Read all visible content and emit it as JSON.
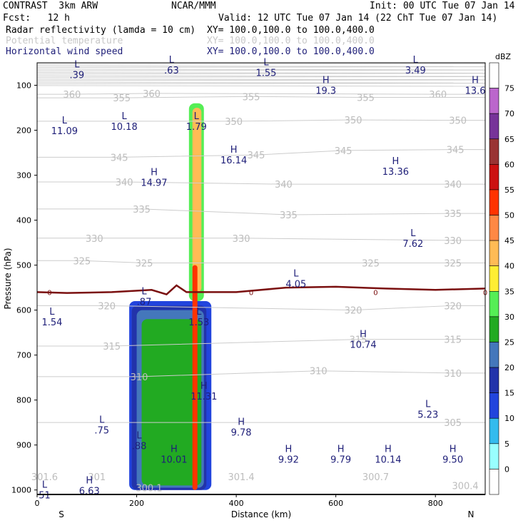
{
  "header": {
    "left_title": "CONTRAST  3km ARW",
    "center_title": "NCAR/MMM",
    "init": "Init: 00 UTC Tue 07 Jan 14",
    "fcst": "Fcst:   12 h",
    "valid": "Valid: 12 UTC Tue 07 Jan 14 (22 ChT Tue 07 Jan 14)",
    "fields": [
      {
        "name": "Radar reflectivity (lamda = 10 cm)",
        "xy": "XY= 100.0,100.0 to 100.0,400.0",
        "color": "#000000"
      },
      {
        "name": "Potential temperature",
        "xy": "XY= 100.0,100.0 to 100.0,400.0",
        "color": "#c8c8c8"
      },
      {
        "name": "Horizontal wind speed",
        "xy": "XY= 100.0,100.0 to 100.0,400.0",
        "color": "#1e1e78"
      }
    ]
  },
  "chart_data": {
    "type": "cross-section",
    "xlabel": "Distance (km)",
    "ylabel": "Pressure (hPa)",
    "xlim": [
      0,
      900
    ],
    "ylim": [
      1010,
      50
    ],
    "x_ticks": [
      0,
      200,
      400,
      600,
      800
    ],
    "y_ticks": [
      100,
      200,
      300,
      400,
      500,
      600,
      700,
      800,
      900,
      1000
    ],
    "x_end_labels": {
      "left": "S",
      "right": "N"
    },
    "colorbar": {
      "unit": "dBZ",
      "levels": [
        0,
        5,
        10,
        15,
        20,
        25,
        30,
        35,
        40,
        45,
        50,
        55,
        60,
        65,
        70,
        75
      ],
      "colors": [
        "#ffffff",
        "#99ffff",
        "#33bbee",
        "#2244dd",
        "#2233aa",
        "#4477bb",
        "#22aa22",
        "#55ee55",
        "#ffee33",
        "#ffbb55",
        "#ff8844",
        "#ff3300",
        "#cc1111",
        "#993333",
        "#773399",
        "#bb66cc",
        "#ffffff"
      ]
    },
    "reflectivity_core": [
      {
        "x": [
          185,
          350
        ],
        "p": [
          1000,
          580
        ],
        "dbz": 10
      },
      {
        "x": [
          190,
          340
        ],
        "p": [
          1000,
          590
        ],
        "dbz": 15
      },
      {
        "x": [
          200,
          335
        ],
        "p": [
          995,
          600
        ],
        "dbz": 20
      },
      {
        "x": [
          210,
          330
        ],
        "p": [
          990,
          620
        ],
        "dbz": 25
      },
      {
        "x": [
          305,
          335
        ],
        "p": [
          580,
          140
        ],
        "dbz": 30
      },
      {
        "x": [
          312,
          330
        ],
        "p": [
          560,
          150
        ],
        "dbz": 40
      },
      {
        "x": [
          312,
          322
        ],
        "p": [
          1000,
          500
        ],
        "dbz": 50
      }
    ],
    "zero_isotherm": {
      "label": "0",
      "points": [
        [
          0,
          560
        ],
        [
          60,
          562
        ],
        [
          150,
          560
        ],
        [
          230,
          555
        ],
        [
          260,
          565
        ],
        [
          280,
          545
        ],
        [
          300,
          560
        ],
        [
          400,
          560
        ],
        [
          500,
          550
        ],
        [
          600,
          548
        ],
        [
          700,
          552
        ],
        [
          800,
          555
        ],
        [
          900,
          552
        ]
      ],
      "color": "#7a0f0f"
    },
    "theta_contours": [
      {
        "value": "360",
        "labels": [
          [
            70,
            120
          ],
          [
            230,
            118
          ],
          [
            805,
            120
          ]
        ]
      },
      {
        "value": "355",
        "labels": [
          [
            170,
            128
          ],
          [
            430,
            125
          ],
          [
            660,
            127
          ]
        ]
      },
      {
        "value": "350",
        "labels": [
          [
            395,
            180
          ],
          [
            635,
            177
          ],
          [
            845,
            178
          ]
        ]
      },
      {
        "value": "345",
        "labels": [
          [
            165,
            260
          ],
          [
            440,
            255
          ],
          [
            615,
            245
          ],
          [
            840,
            243
          ]
        ]
      },
      {
        "value": "340",
        "labels": [
          [
            175,
            315
          ],
          [
            495,
            320
          ],
          [
            835,
            320
          ]
        ]
      },
      {
        "value": "335",
        "labels": [
          [
            210,
            375
          ],
          [
            505,
            388
          ],
          [
            835,
            385
          ]
        ]
      },
      {
        "value": "330",
        "labels": [
          [
            115,
            440
          ],
          [
            410,
            440
          ],
          [
            835,
            445
          ]
        ]
      },
      {
        "value": "325",
        "labels": [
          [
            90,
            490
          ],
          [
            215,
            495
          ],
          [
            670,
            495
          ],
          [
            835,
            495
          ]
        ]
      },
      {
        "value": "320",
        "labels": [
          [
            140,
            590
          ],
          [
            635,
            600
          ],
          [
            835,
            590
          ]
        ]
      },
      {
        "value": "315",
        "labels": [
          [
            150,
            680
          ],
          [
            645,
            665
          ],
          [
            835,
            665
          ]
        ]
      },
      {
        "value": "310",
        "labels": [
          [
            205,
            748
          ],
          [
            565,
            735
          ],
          [
            835,
            740
          ]
        ]
      },
      {
        "value": "305",
        "labels": [
          [
            835,
            850
          ]
        ]
      }
    ],
    "surface_theta_labels": [
      {
        "text": "301.6",
        "x": 15,
        "p": 970
      },
      {
        "text": "301",
        "x": 120,
        "p": 970
      },
      {
        "text": "300.1",
        "x": 225,
        "p": 995
      },
      {
        "text": "301.4",
        "x": 410,
        "p": 970
      },
      {
        "text": "300.7",
        "x": 680,
        "p": 970
      },
      {
        "text": "300.4",
        "x": 860,
        "p": 990
      }
    ],
    "wind_extrema": [
      {
        "type": "L",
        "value": ".39",
        "x": 80,
        "p": 65
      },
      {
        "type": "L",
        "value": ".63",
        "x": 270,
        "p": 55
      },
      {
        "type": "L",
        "value": "1.55",
        "x": 460,
        "p": 60
      },
      {
        "type": "L",
        "value": "3.49",
        "x": 760,
        "p": 55
      },
      {
        "type": "H",
        "value": "19.3",
        "x": 580,
        "p": 100
      },
      {
        "type": "H",
        "value": "13.6",
        "x": 880,
        "p": 100
      },
      {
        "type": "L",
        "value": "11.09",
        "x": 55,
        "p": 190
      },
      {
        "type": "L",
        "value": "10.18",
        "x": 175,
        "p": 180
      },
      {
        "type": "L",
        "value": "1.79",
        "x": 320,
        "p": 180
      },
      {
        "type": "H",
        "value": "16.14",
        "x": 395,
        "p": 255
      },
      {
        "type": "H",
        "value": "14.97",
        "x": 235,
        "p": 305
      },
      {
        "type": "H",
        "value": "13.36",
        "x": 720,
        "p": 280
      },
      {
        "type": "L",
        "value": "7.62",
        "x": 755,
        "p": 440
      },
      {
        "type": "L",
        "value": "4.05",
        "x": 520,
        "p": 530
      },
      {
        "type": "L",
        "value": ".87",
        "x": 215,
        "p": 570
      },
      {
        "type": "L",
        "value": "1.54",
        "x": 30,
        "p": 615
      },
      {
        "type": "L",
        "value": "1.53",
        "x": 325,
        "p": 615
      },
      {
        "type": "H",
        "value": "10.74",
        "x": 655,
        "p": 665
      },
      {
        "type": "H",
        "value": "11.31",
        "x": 335,
        "p": 780
      },
      {
        "type": "L",
        "value": "5.23",
        "x": 785,
        "p": 820
      },
      {
        "type": "L",
        "value": ".75",
        "x": 130,
        "p": 855
      },
      {
        "type": "H",
        "value": "9.78",
        "x": 410,
        "p": 860
      },
      {
        "type": "L",
        "value": ".88",
        "x": 205,
        "p": 890
      },
      {
        "type": "H",
        "value": "10.01",
        "x": 275,
        "p": 920
      },
      {
        "type": "H",
        "value": "9.92",
        "x": 505,
        "p": 920
      },
      {
        "type": "H",
        "value": "9.79",
        "x": 610,
        "p": 920
      },
      {
        "type": "H",
        "value": "10.14",
        "x": 705,
        "p": 920
      },
      {
        "type": "H",
        "value": "9.50",
        "x": 835,
        "p": 920
      },
      {
        "type": "H",
        "value": "6.63",
        "x": 105,
        "p": 990
      },
      {
        "type": "L",
        "value": "51",
        "x": 15,
        "p": 1000
      }
    ]
  }
}
